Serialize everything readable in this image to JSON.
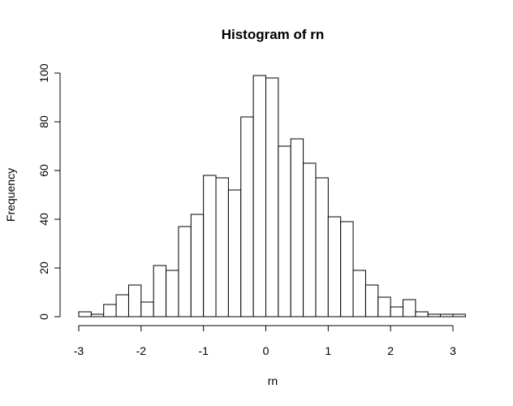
{
  "chart_data": {
    "type": "bar",
    "title": "Histogram of rn",
    "xlabel": "rn",
    "ylabel": "Frequency",
    "bin_width": 0.2,
    "bin_edges_start": -3.0,
    "counts": [
      2,
      1,
      5,
      9,
      13,
      6,
      21,
      19,
      37,
      42,
      58,
      57,
      52,
      82,
      99,
      98,
      70,
      73,
      63,
      57,
      41,
      39,
      19,
      13,
      8,
      4,
      7,
      2,
      1,
      1,
      1
    ],
    "xlim": [
      -3,
      3.2
    ],
    "ylim": [
      0,
      100
    ],
    "x_ticks": [
      -3,
      -2,
      -1,
      0,
      1,
      2,
      3
    ],
    "y_ticks": [
      0,
      20,
      40,
      60,
      80,
      100
    ],
    "grid": false,
    "colors": {
      "fill": "#ffffff",
      "stroke": "#000000"
    }
  }
}
